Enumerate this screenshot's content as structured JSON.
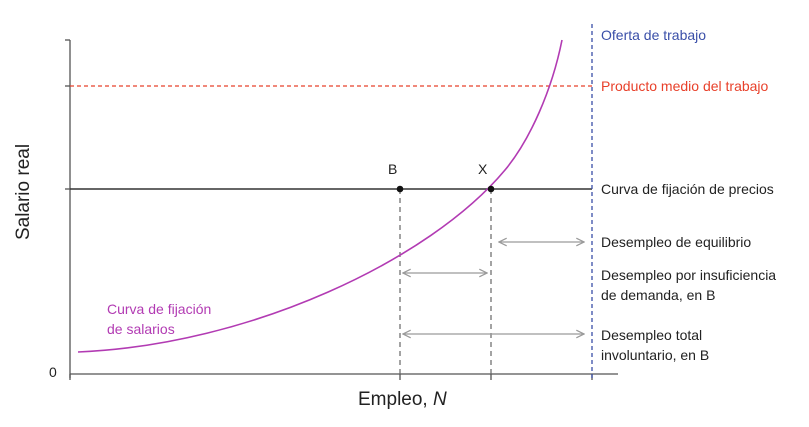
{
  "chart_data": {
    "type": "line",
    "title": "",
    "xlabel_text": "Empleo, ",
    "xlabel_var": "N",
    "ylabel": "Salario real",
    "origin_label": "0",
    "colors": {
      "axis": "#555555",
      "labor_supply": "#3a4fa8",
      "avg_product": "#e8402a",
      "price_setting": "#333333",
      "wage_setting": "#b23bb3",
      "arrow": "#9a9a9a",
      "dash_guide": "#666666"
    },
    "lines": {
      "labor_supply": "Oferta de trabajo",
      "avg_product": "Producto medio del trabajo",
      "price_setting": "Curva de fijación de precios"
    },
    "wage_setting": {
      "label_line1": "Curva de fijación",
      "label_line2": "de salarios"
    },
    "points": {
      "B": "B",
      "X": "X"
    },
    "annotations": {
      "equilibrium": "Desempleo de equilibrio",
      "demand_line1": "Desempleo por insuficiencia",
      "demand_line2": "de demanda, en B",
      "total_line1": "Desempleo total",
      "total_line2": "involuntario, en B"
    }
  }
}
